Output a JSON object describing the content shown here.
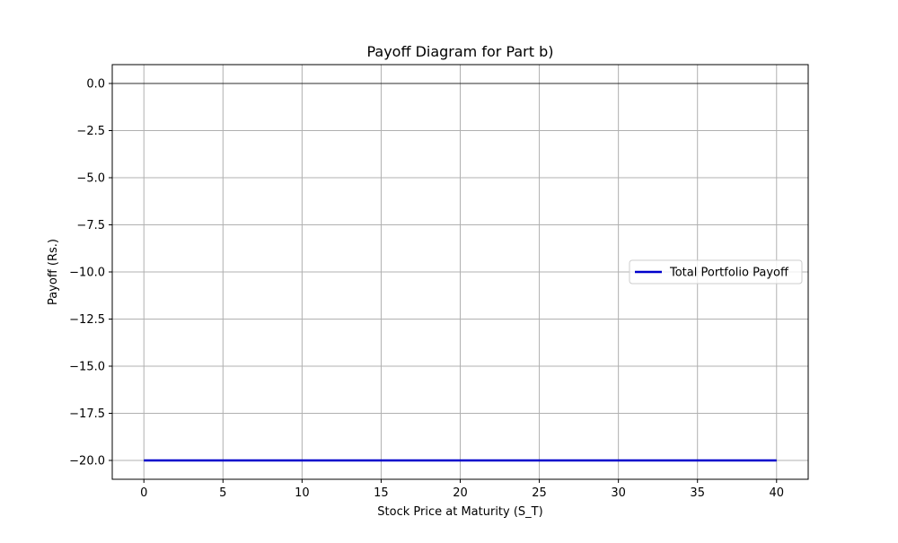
{
  "chart_data": {
    "type": "line",
    "title": "Payoff Diagram for Part b)",
    "xlabel": "Stock Price at Maturity (S_T)",
    "ylabel": "Payoff (Rs.)",
    "xlim": [
      -2,
      42
    ],
    "ylim": [
      -21,
      1
    ],
    "xticks": [
      0,
      5,
      10,
      15,
      20,
      25,
      30,
      35,
      40
    ],
    "xtick_labels": [
      "0",
      "5",
      "10",
      "15",
      "20",
      "25",
      "30",
      "35",
      "40"
    ],
    "yticks": [
      0,
      -2.5,
      -5,
      -7.5,
      -10,
      -12.5,
      -15,
      -17.5,
      -20
    ],
    "ytick_labels": [
      "0.0",
      "−2.5",
      "−5.0",
      "−7.5",
      "−10.0",
      "−12.5",
      "−15.0",
      "−17.5",
      "−20.0"
    ],
    "grid": true,
    "reference_line_y": 0,
    "legend_position": "center-right",
    "series": [
      {
        "name": "Total Portfolio Payoff",
        "color": "#0000cc",
        "x": [
          0,
          5,
          10,
          15,
          20,
          25,
          30,
          35,
          40
        ],
        "y": [
          -20,
          -20,
          -20,
          -20,
          -20,
          -20,
          -20,
          -20,
          -20
        ]
      }
    ],
    "colors": {
      "grid": "#b0b0b0",
      "axes": "#000000",
      "reference_line": "#000000"
    }
  }
}
